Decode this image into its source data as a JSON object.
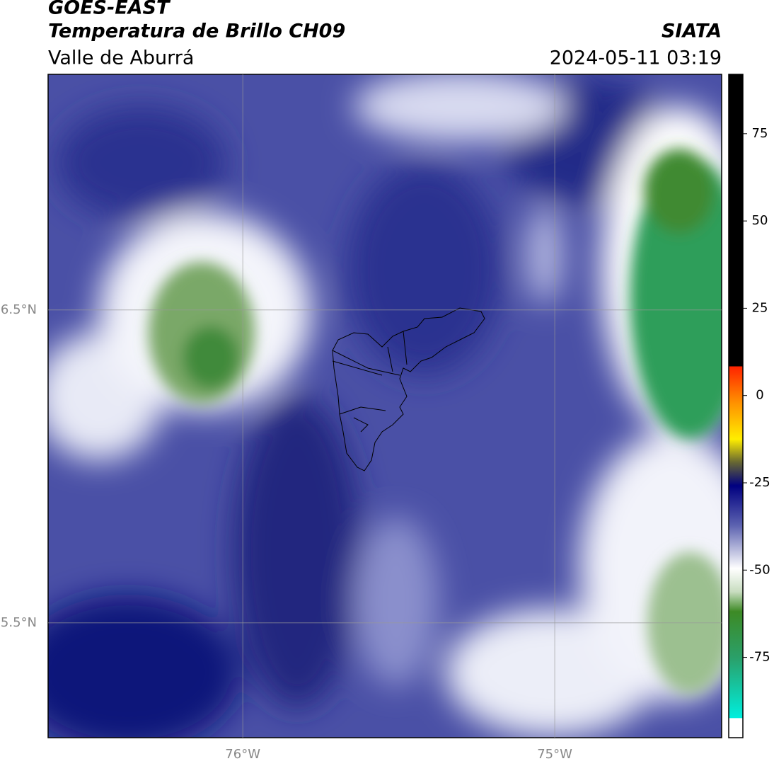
{
  "header": {
    "line1": "GOES-EAST",
    "line2": "Temperatura de Brillo CH09",
    "source": "SIATA",
    "region": "Valle de Aburrá",
    "datetime": "2024-05-11 03:19"
  },
  "map": {
    "xlim": [
      -76.624,
      -74.465
    ],
    "ylim": [
      5.133,
      7.253
    ],
    "xticks": [
      {
        "value": -76,
        "label": "76°W"
      },
      {
        "value": -75,
        "label": "75°W"
      }
    ],
    "yticks": [
      {
        "value": 6.5,
        "label": "6.5°N"
      },
      {
        "value": 5.5,
        "label": "5.5°N"
      }
    ],
    "grid": true
  },
  "colorbar": {
    "lim": [
      -98,
      92
    ],
    "ticks": [
      -75,
      -50,
      -25,
      0,
      25,
      50,
      75
    ]
  }
}
